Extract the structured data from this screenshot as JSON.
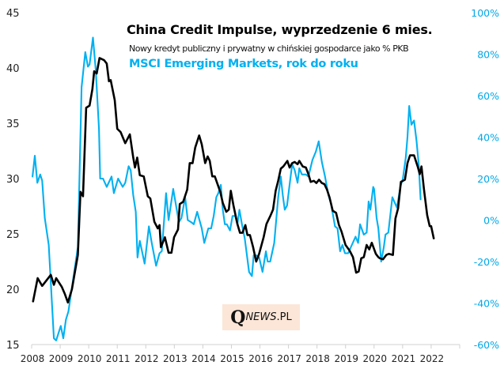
{
  "chart_data": {
    "type": "line",
    "title": "China Credit Impulse",
    "title_suffix": ", wyprzedzenie 6 mies.",
    "subtitle": "Nowy kredyt publiczny i prywatny w chińskiej gospodarce jako % PKB",
    "secondary_title": "MSCI Emerging Markets, rok do roku",
    "xlabel": "",
    "ylabel": "",
    "y2label": "",
    "x_ticks": [
      "2008",
      "2009",
      "2010",
      "2011",
      "2012",
      "2013",
      "2014",
      "2015",
      "2016",
      "2017",
      "2018",
      "2019",
      "2020",
      "2021",
      "2022"
    ],
    "xlim": [
      2008,
      2023
    ],
    "ylim": [
      15,
      45
    ],
    "y_ticks": [
      15,
      20,
      25,
      30,
      35,
      40,
      45
    ],
    "y2lim": [
      -60,
      100
    ],
    "y2_ticks": [
      "-60%",
      "-40%",
      "-20%",
      "0%",
      "20%",
      "40%",
      "60%",
      "80%",
      "100%"
    ],
    "y2_tick_values": [
      -60,
      -40,
      -20,
      0,
      20,
      40,
      60,
      80,
      100
    ],
    "grid": false,
    "legend": "none (titles act as legend, top-center)",
    "colors": {
      "credit_impulse": "#000000",
      "msci_em": "#00b0f0",
      "right_axis": "#00a8e8"
    },
    "series": [
      {
        "name": "China Credit Impulse (6m lead), % GDP",
        "axis": "left",
        "color": "#000000",
        "points": [
          [
            2008.05,
            18.9
          ],
          [
            2008.21,
            21.0
          ],
          [
            2008.37,
            20.3
          ],
          [
            2008.67,
            21.3
          ],
          [
            2008.78,
            20.4
          ],
          [
            2008.86,
            21.0
          ],
          [
            2009.06,
            20.2
          ],
          [
            2009.16,
            19.6
          ],
          [
            2009.27,
            18.8
          ],
          [
            2009.41,
            20.0
          ],
          [
            2009.62,
            23.1
          ],
          [
            2009.71,
            28.8
          ],
          [
            2009.8,
            28.4
          ],
          [
            2009.91,
            36.4
          ],
          [
            2010.03,
            36.6
          ],
          [
            2010.13,
            38.1
          ],
          [
            2010.19,
            39.7
          ],
          [
            2010.28,
            39.5
          ],
          [
            2010.38,
            40.9
          ],
          [
            2010.54,
            40.7
          ],
          [
            2010.63,
            40.4
          ],
          [
            2010.71,
            38.8
          ],
          [
            2010.77,
            38.9
          ],
          [
            2010.91,
            37.1
          ],
          [
            2011.0,
            34.5
          ],
          [
            2011.12,
            34.2
          ],
          [
            2011.28,
            33.2
          ],
          [
            2011.44,
            34.0
          ],
          [
            2011.56,
            31.9
          ],
          [
            2011.62,
            31.0
          ],
          [
            2011.7,
            31.9
          ],
          [
            2011.79,
            30.3
          ],
          [
            2011.93,
            30.2
          ],
          [
            2012.07,
            28.4
          ],
          [
            2012.16,
            28.2
          ],
          [
            2012.3,
            26.1
          ],
          [
            2012.42,
            25.5
          ],
          [
            2012.48,
            25.8
          ],
          [
            2012.53,
            23.8
          ],
          [
            2012.67,
            24.7
          ],
          [
            2012.8,
            23.3
          ],
          [
            2012.9,
            23.3
          ],
          [
            2012.99,
            24.7
          ],
          [
            2013.13,
            25.4
          ],
          [
            2013.19,
            27.7
          ],
          [
            2013.31,
            27.9
          ],
          [
            2013.45,
            29.0
          ],
          [
            2013.54,
            31.4
          ],
          [
            2013.64,
            31.4
          ],
          [
            2013.73,
            32.8
          ],
          [
            2013.87,
            33.9
          ],
          [
            2013.96,
            33.1
          ],
          [
            2014.08,
            31.4
          ],
          [
            2014.17,
            32.0
          ],
          [
            2014.24,
            31.6
          ],
          [
            2014.33,
            30.2
          ],
          [
            2014.42,
            30.2
          ],
          [
            2014.61,
            28.8
          ],
          [
            2014.7,
            27.8
          ],
          [
            2014.82,
            27.0
          ],
          [
            2014.91,
            27.2
          ],
          [
            2014.98,
            28.9
          ],
          [
            2015.07,
            27.6
          ],
          [
            2015.21,
            25.9
          ],
          [
            2015.3,
            25.1
          ],
          [
            2015.39,
            25.1
          ],
          [
            2015.49,
            25.8
          ],
          [
            2015.56,
            24.9
          ],
          [
            2015.65,
            24.9
          ],
          [
            2015.76,
            23.8
          ],
          [
            2015.87,
            22.5
          ],
          [
            2015.97,
            23.2
          ],
          [
            2016.13,
            24.7
          ],
          [
            2016.23,
            25.9
          ],
          [
            2016.36,
            26.6
          ],
          [
            2016.46,
            27.2
          ],
          [
            2016.55,
            28.9
          ],
          [
            2016.64,
            29.8
          ],
          [
            2016.73,
            30.9
          ],
          [
            2016.82,
            31.1
          ],
          [
            2016.96,
            31.6
          ],
          [
            2017.04,
            31.0
          ],
          [
            2017.13,
            31.4
          ],
          [
            2017.22,
            31.5
          ],
          [
            2017.32,
            31.3
          ],
          [
            2017.38,
            31.6
          ],
          [
            2017.5,
            31.1
          ],
          [
            2017.61,
            31.0
          ],
          [
            2017.7,
            30.4
          ],
          [
            2017.78,
            29.7
          ],
          [
            2017.89,
            29.8
          ],
          [
            2017.98,
            29.6
          ],
          [
            2018.07,
            29.9
          ],
          [
            2018.17,
            29.6
          ],
          [
            2018.26,
            29.5
          ],
          [
            2018.35,
            29.0
          ],
          [
            2018.44,
            28.3
          ],
          [
            2018.55,
            27.1
          ],
          [
            2018.67,
            26.9
          ],
          [
            2018.77,
            25.8
          ],
          [
            2018.86,
            25.2
          ],
          [
            2019.0,
            24.0
          ],
          [
            2019.14,
            23.5
          ],
          [
            2019.26,
            22.9
          ],
          [
            2019.37,
            21.5
          ],
          [
            2019.46,
            21.6
          ],
          [
            2019.55,
            22.8
          ],
          [
            2019.64,
            22.9
          ],
          [
            2019.74,
            24.0
          ],
          [
            2019.83,
            23.6
          ],
          [
            2019.92,
            24.2
          ],
          [
            2020.06,
            23.2
          ],
          [
            2020.15,
            22.9
          ],
          [
            2020.2,
            22.8
          ],
          [
            2020.31,
            22.7
          ],
          [
            2020.43,
            23.1
          ],
          [
            2020.52,
            23.2
          ],
          [
            2020.66,
            23.1
          ],
          [
            2020.75,
            26.4
          ],
          [
            2020.84,
            27.3
          ],
          [
            2020.94,
            29.7
          ],
          [
            2021.08,
            29.9
          ],
          [
            2021.17,
            31.4
          ],
          [
            2021.26,
            32.1
          ],
          [
            2021.4,
            32.1
          ],
          [
            2021.54,
            31.0
          ],
          [
            2021.6,
            30.4
          ],
          [
            2021.66,
            31.1
          ],
          [
            2021.75,
            29.0
          ],
          [
            2021.86,
            26.7
          ],
          [
            2021.95,
            25.7
          ],
          [
            2022.0,
            25.7
          ],
          [
            2022.09,
            24.6
          ]
        ]
      },
      {
        "name": "MSCI Emerging Markets, y/y %",
        "axis": "right",
        "color": "#00b0f0",
        "points": [
          [
            2008.03,
            21
          ],
          [
            2008.11,
            31
          ],
          [
            2008.2,
            18
          ],
          [
            2008.3,
            22
          ],
          [
            2008.37,
            19
          ],
          [
            2008.46,
            1
          ],
          [
            2008.6,
            -12
          ],
          [
            2008.78,
            -57
          ],
          [
            2008.86,
            -58
          ],
          [
            2009.02,
            -51
          ],
          [
            2009.11,
            -57
          ],
          [
            2009.2,
            -48
          ],
          [
            2009.29,
            -44
          ],
          [
            2009.62,
            -13
          ],
          [
            2009.75,
            64
          ],
          [
            2009.88,
            81
          ],
          [
            2009.97,
            74
          ],
          [
            2010.03,
            75
          ],
          [
            2010.15,
            88
          ],
          [
            2010.25,
            72
          ],
          [
            2010.36,
            44
          ],
          [
            2010.4,
            20
          ],
          [
            2010.5,
            20
          ],
          [
            2010.63,
            16
          ],
          [
            2010.8,
            21
          ],
          [
            2010.88,
            13
          ],
          [
            2011.03,
            20
          ],
          [
            2011.19,
            16
          ],
          [
            2011.28,
            18
          ],
          [
            2011.4,
            26
          ],
          [
            2011.47,
            24
          ],
          [
            2011.56,
            12
          ],
          [
            2011.65,
            4
          ],
          [
            2011.71,
            -18
          ],
          [
            2011.79,
            -10
          ],
          [
            2011.96,
            -21
          ],
          [
            2012.11,
            -3
          ],
          [
            2012.21,
            -11
          ],
          [
            2012.36,
            -22
          ],
          [
            2012.48,
            -16
          ],
          [
            2012.56,
            -15
          ],
          [
            2012.71,
            13
          ],
          [
            2012.8,
            0
          ],
          [
            2012.96,
            15
          ],
          [
            2013.16,
            -1
          ],
          [
            2013.25,
            1
          ],
          [
            2013.38,
            11
          ],
          [
            2013.47,
            0
          ],
          [
            2013.59,
            -1
          ],
          [
            2013.68,
            -2
          ],
          [
            2013.8,
            4
          ],
          [
            2013.96,
            -4
          ],
          [
            2014.05,
            -11
          ],
          [
            2014.19,
            -4
          ],
          [
            2014.29,
            -4
          ],
          [
            2014.38,
            2
          ],
          [
            2014.47,
            11
          ],
          [
            2014.54,
            13
          ],
          [
            2014.63,
            17
          ],
          [
            2014.7,
            5
          ],
          [
            2014.77,
            -2
          ],
          [
            2014.84,
            -2
          ],
          [
            2014.95,
            -5
          ],
          [
            2015.04,
            2
          ],
          [
            2015.13,
            2
          ],
          [
            2015.21,
            -2
          ],
          [
            2015.28,
            5
          ],
          [
            2015.37,
            -2
          ],
          [
            2015.47,
            -9
          ],
          [
            2015.62,
            -25
          ],
          [
            2015.72,
            -27
          ],
          [
            2015.78,
            -17
          ],
          [
            2015.87,
            -17
          ],
          [
            2015.97,
            -18
          ],
          [
            2016.09,
            -25
          ],
          [
            2016.21,
            -15
          ],
          [
            2016.27,
            -20
          ],
          [
            2016.36,
            -20
          ],
          [
            2016.5,
            -11
          ],
          [
            2016.64,
            11
          ],
          [
            2016.73,
            21
          ],
          [
            2016.8,
            12
          ],
          [
            2016.87,
            5
          ],
          [
            2016.95,
            7
          ],
          [
            2017.04,
            17
          ],
          [
            2017.13,
            27
          ],
          [
            2017.22,
            24
          ],
          [
            2017.32,
            18
          ],
          [
            2017.38,
            25
          ],
          [
            2017.47,
            22
          ],
          [
            2017.61,
            22
          ],
          [
            2017.7,
            21
          ],
          [
            2017.84,
            29
          ],
          [
            2017.96,
            33
          ],
          [
            2018.06,
            38
          ],
          [
            2018.17,
            28
          ],
          [
            2018.28,
            21
          ],
          [
            2018.4,
            12
          ],
          [
            2018.49,
            8
          ],
          [
            2018.63,
            -3
          ],
          [
            2018.72,
            -4
          ],
          [
            2018.81,
            -15
          ],
          [
            2018.89,
            -12
          ],
          [
            2018.98,
            -16
          ],
          [
            2019.09,
            -16
          ],
          [
            2019.35,
            -8
          ],
          [
            2019.44,
            -11
          ],
          [
            2019.51,
            -2
          ],
          [
            2019.64,
            -7
          ],
          [
            2019.74,
            -6
          ],
          [
            2019.81,
            9
          ],
          [
            2019.87,
            5
          ],
          [
            2019.97,
            16
          ],
          [
            2020.0,
            15
          ],
          [
            2020.09,
            1
          ],
          [
            2020.15,
            -4
          ],
          [
            2020.25,
            -20
          ],
          [
            2020.34,
            -13
          ],
          [
            2020.4,
            -7
          ],
          [
            2020.5,
            -6
          ],
          [
            2020.64,
            11
          ],
          [
            2020.8,
            6
          ],
          [
            2020.92,
            16
          ],
          [
            2021.01,
            20
          ],
          [
            2021.11,
            30
          ],
          [
            2021.17,
            40
          ],
          [
            2021.23,
            55
          ],
          [
            2021.31,
            46
          ],
          [
            2021.4,
            48
          ],
          [
            2021.49,
            38
          ],
          [
            2021.57,
            26
          ],
          [
            2021.63,
            10
          ]
        ]
      }
    ]
  },
  "logo": {
    "q": "Q",
    "name": "NEWS",
    "suffix": ".PL"
  }
}
